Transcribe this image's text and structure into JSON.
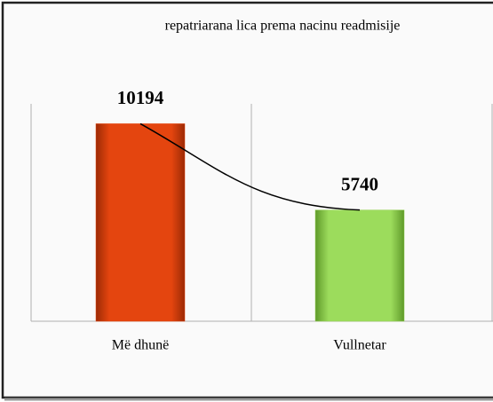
{
  "chart_data": {
    "type": "bar",
    "title": "repatriarana lica  prema nacinu readmisije",
    "categories": [
      "Më dhunë",
      "Vullnetar"
    ],
    "values": [
      10194,
      5740
    ],
    "colors": [
      "#e4450f",
      "#92d050"
    ],
    "trendline": true,
    "ylim": [
      0,
      12000
    ]
  }
}
